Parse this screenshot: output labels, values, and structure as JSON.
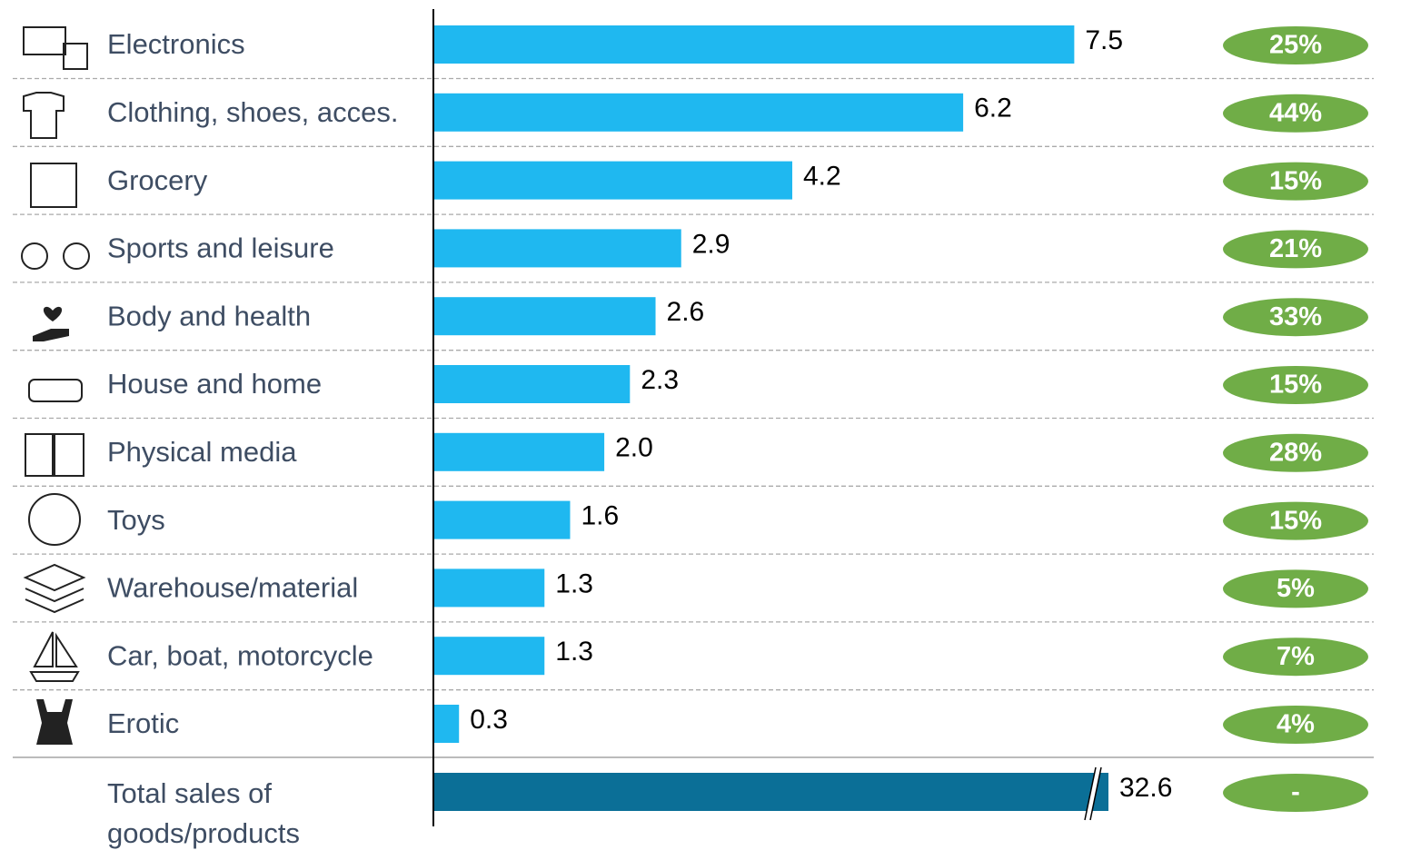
{
  "chart_data": {
    "type": "bar",
    "orientation": "horizontal",
    "categories": [
      "Electronics",
      "Clothing, shoes, acces.",
      "Grocery",
      "Sports and leisure",
      "Body and health",
      "House and home",
      "Physical media",
      "Toys",
      "Warehouse/material",
      "Car, boat, motorcycle",
      "Erotic",
      "Total sales of goods/products"
    ],
    "series": [
      {
        "color": "#1fb8f0",
        "total_color": "#0b6f97",
        "values": [
          7.5,
          6.2,
          4.2,
          2.9,
          2.6,
          2.3,
          2.0,
          1.6,
          1.3,
          1.3,
          0.3,
          32.6
        ],
        "value_labels": [
          "7.5",
          "6.2",
          "4.2",
          "2.9",
          "2.6",
          "2.3",
          "2.0",
          "1.6",
          "1.3",
          "1.3",
          "0.3",
          "32.6"
        ]
      },
      {
        "color": "#70ad47",
        "values": [
          25,
          44,
          15,
          21,
          33,
          15,
          28,
          15,
          5,
          7,
          4,
          null
        ],
        "value_labels": [
          "25%",
          "44%",
          "15%",
          "21%",
          "33%",
          "15%",
          "28%",
          "15%",
          "5%",
          "7%",
          "4%",
          "-"
        ]
      }
    ],
    "xlim": [
      0,
      7.9
    ]
  }
}
